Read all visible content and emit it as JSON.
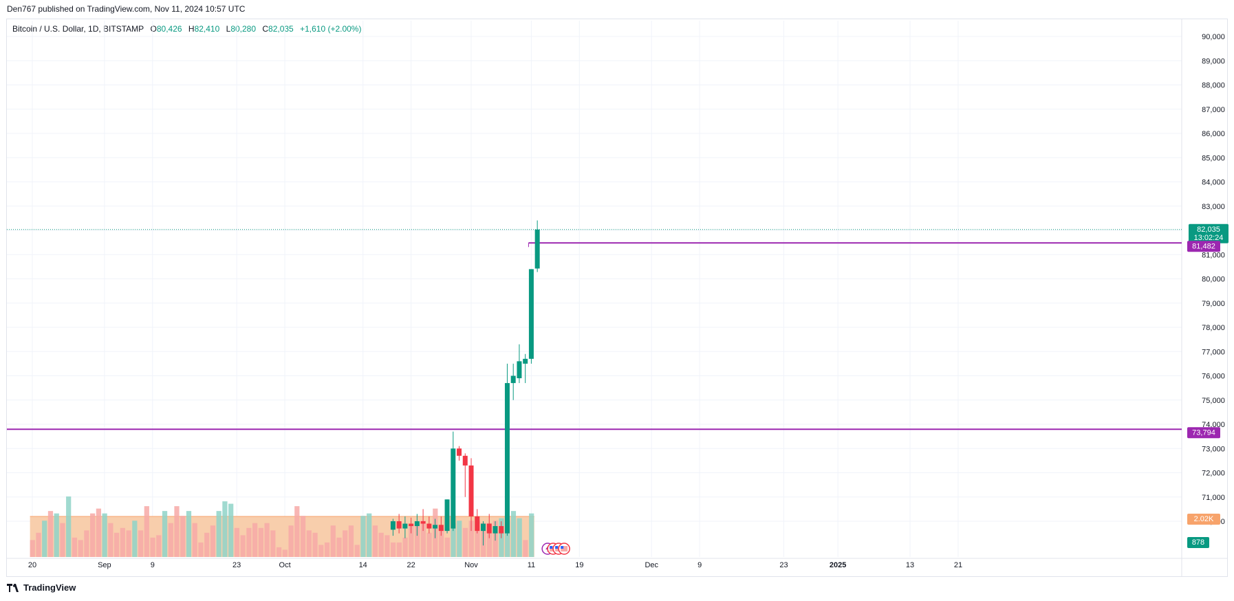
{
  "publisher_line": "Den767 published on TradingView.com, Nov 11, 2024 10:57 UTC",
  "legend": {
    "symbol": "Bitcoin / U.S. Dollar, 1D, BITSTAMP",
    "open_label": "O",
    "open": "80,426",
    "high_label": "H",
    "high": "82,410",
    "low_label": "L",
    "low": "80,280",
    "close_label": "C",
    "close": "82,035",
    "change": "+1,610 (+2.00%)"
  },
  "footer": {
    "brand": "TradingView",
    "icon": "tradingview-logo-icon"
  },
  "colors": {
    "up": "#089981",
    "down": "#f23645",
    "level": "#9c27b0",
    "vol_up": "#8fd3c8",
    "vol_down": "#f7a9a7",
    "vol_ma_fill": "#f7c9a3",
    "vol_ma_line": "#f7a36b"
  },
  "chart_data": {
    "type": "candlestick",
    "ylim": [
      69500,
      90500
    ],
    "y_ticks": [
      70000,
      71000,
      72000,
      73000,
      74000,
      75000,
      76000,
      77000,
      78000,
      79000,
      80000,
      81000,
      82000,
      83000,
      84000,
      85000,
      86000,
      87000,
      88000,
      89000,
      90000
    ],
    "x_ticks": [
      {
        "label": "20",
        "day": 0
      },
      {
        "label": "Sep",
        "day": 12
      },
      {
        "label": "9",
        "day": 20
      },
      {
        "label": "23",
        "day": 34
      },
      {
        "label": "Oct",
        "day": 42
      },
      {
        "label": "14",
        "day": 55
      },
      {
        "label": "22",
        "day": 63
      },
      {
        "label": "Nov",
        "day": 73
      },
      {
        "label": "11",
        "day": 83
      },
      {
        "label": "19",
        "day": 91
      },
      {
        "label": "Dec",
        "day": 103
      },
      {
        "label": "9",
        "day": 111
      },
      {
        "label": "23",
        "day": 125
      },
      {
        "label": "2025",
        "day": 134
      },
      {
        "label": "13",
        "day": 146
      },
      {
        "label": "21",
        "day": 154
      }
    ],
    "candles": [
      {
        "day": 60,
        "o": 69650,
        "h": 70100,
        "l": 69400,
        "c": 70000
      },
      {
        "day": 61,
        "o": 70000,
        "h": 70300,
        "l": 69500,
        "c": 69700
      },
      {
        "day": 62,
        "o": 69700,
        "h": 70200,
        "l": 69300,
        "c": 69900
      },
      {
        "day": 63,
        "o": 69900,
        "h": 70150,
        "l": 69500,
        "c": 69800
      },
      {
        "day": 64,
        "o": 69800,
        "h": 70300,
        "l": 69400,
        "c": 70000
      },
      {
        "day": 65,
        "o": 70000,
        "h": 70500,
        "l": 69600,
        "c": 69900
      },
      {
        "day": 66,
        "o": 69900,
        "h": 70200,
        "l": 69500,
        "c": 69700
      },
      {
        "day": 67,
        "o": 69700,
        "h": 70100,
        "l": 69300,
        "c": 69850
      },
      {
        "day": 68,
        "o": 69850,
        "h": 70200,
        "l": 69400,
        "c": 69600
      },
      {
        "day": 69,
        "o": 69600,
        "h": 70900,
        "l": 69500,
        "c": 70900
      },
      {
        "day": 70,
        "o": 69700,
        "h": 73700,
        "l": 69600,
        "c": 73000
      },
      {
        "day": 71,
        "o": 73000,
        "h": 73100,
        "l": 72500,
        "c": 72700
      },
      {
        "day": 72,
        "o": 72700,
        "h": 72800,
        "l": 71000,
        "c": 72300
      },
      {
        "day": 73,
        "o": 72300,
        "h": 72600,
        "l": 69600,
        "c": 70200
      },
      {
        "day": 74,
        "o": 70200,
        "h": 70500,
        "l": 69500,
        "c": 69600
      },
      {
        "day": 75,
        "o": 69600,
        "h": 70000,
        "l": 69000,
        "c": 69900
      },
      {
        "day": 76,
        "o": 69900,
        "h": 70300,
        "l": 69300,
        "c": 69500
      },
      {
        "day": 77,
        "o": 69500,
        "h": 70000,
        "l": 69200,
        "c": 69800
      },
      {
        "day": 78,
        "o": 69800,
        "h": 70000,
        "l": 69300,
        "c": 69500
      },
      {
        "day": 79,
        "o": 69500,
        "h": 76500,
        "l": 69400,
        "c": 75700
      },
      {
        "day": 80,
        "o": 75700,
        "h": 76500,
        "l": 75000,
        "c": 76000
      },
      {
        "day": 81,
        "o": 75900,
        "h": 77300,
        "l": 75700,
        "c": 76600
      },
      {
        "day": 82,
        "o": 76500,
        "h": 76900,
        "l": 75700,
        "c": 76700
      },
      {
        "day": 83,
        "o": 76700,
        "h": 80400,
        "l": 76500,
        "c": 80400
      },
      {
        "day": 84,
        "o": 80426,
        "h": 82410,
        "l": 80280,
        "c": 82035
      }
    ],
    "volume": {
      "ma_level": 70200,
      "bars": [
        {
          "day": 0,
          "v": 0.35,
          "up": false
        },
        {
          "day": 1,
          "v": 0.5,
          "up": false
        },
        {
          "day": 2,
          "v": 0.75,
          "up": true
        },
        {
          "day": 3,
          "v": 0.95,
          "up": false
        },
        {
          "day": 4,
          "v": 0.9,
          "up": true
        },
        {
          "day": 5,
          "v": 0.7,
          "up": false
        },
        {
          "day": 6,
          "v": 1.25,
          "up": true
        },
        {
          "day": 7,
          "v": 0.4,
          "up": false
        },
        {
          "day": 8,
          "v": 0.35,
          "up": false
        },
        {
          "day": 9,
          "v": 0.55,
          "up": false
        },
        {
          "day": 10,
          "v": 0.9,
          "up": false
        },
        {
          "day": 11,
          "v": 1.0,
          "up": false
        },
        {
          "day": 12,
          "v": 0.9,
          "up": true
        },
        {
          "day": 13,
          "v": 0.7,
          "up": false
        },
        {
          "day": 14,
          "v": 0.5,
          "up": false
        },
        {
          "day": 15,
          "v": 0.6,
          "up": false
        },
        {
          "day": 16,
          "v": 0.55,
          "up": false
        },
        {
          "day": 17,
          "v": 0.75,
          "up": true
        },
        {
          "day": 18,
          "v": 0.55,
          "up": false
        },
        {
          "day": 19,
          "v": 1.05,
          "up": false
        },
        {
          "day": 20,
          "v": 0.4,
          "up": false
        },
        {
          "day": 21,
          "v": 0.45,
          "up": false
        },
        {
          "day": 22,
          "v": 0.95,
          "up": true
        },
        {
          "day": 23,
          "v": 0.7,
          "up": false
        },
        {
          "day": 24,
          "v": 1.05,
          "up": false
        },
        {
          "day": 25,
          "v": 0.85,
          "up": false
        },
        {
          "day": 26,
          "v": 0.95,
          "up": true
        },
        {
          "day": 27,
          "v": 0.7,
          "up": false
        },
        {
          "day": 28,
          "v": 0.3,
          "up": false
        },
        {
          "day": 29,
          "v": 0.5,
          "up": false
        },
        {
          "day": 30,
          "v": 0.65,
          "up": false
        },
        {
          "day": 31,
          "v": 0.95,
          "up": true
        },
        {
          "day": 32,
          "v": 1.15,
          "up": true
        },
        {
          "day": 33,
          "v": 1.1,
          "up": true
        },
        {
          "day": 34,
          "v": 0.6,
          "up": false
        },
        {
          "day": 35,
          "v": 0.45,
          "up": false
        },
        {
          "day": 36,
          "v": 0.6,
          "up": false
        },
        {
          "day": 37,
          "v": 0.7,
          "up": false
        },
        {
          "day": 38,
          "v": 0.6,
          "up": false
        },
        {
          "day": 39,
          "v": 0.7,
          "up": false
        },
        {
          "day": 40,
          "v": 0.55,
          "up": false
        },
        {
          "day": 41,
          "v": 0.2,
          "up": false
        },
        {
          "day": 42,
          "v": 0.15,
          "up": false
        },
        {
          "day": 43,
          "v": 0.65,
          "up": false
        },
        {
          "day": 44,
          "v": 1.05,
          "up": false
        },
        {
          "day": 45,
          "v": 0.85,
          "up": false
        },
        {
          "day": 46,
          "v": 0.55,
          "up": false
        },
        {
          "day": 47,
          "v": 0.5,
          "up": false
        },
        {
          "day": 48,
          "v": 0.25,
          "up": false
        },
        {
          "day": 49,
          "v": 0.3,
          "up": false
        },
        {
          "day": 50,
          "v": 0.65,
          "up": false
        },
        {
          "day": 51,
          "v": 0.4,
          "up": false
        },
        {
          "day": 52,
          "v": 0.55,
          "up": false
        },
        {
          "day": 53,
          "v": 0.65,
          "up": false
        },
        {
          "day": 54,
          "v": 0.25,
          "up": false
        },
        {
          "day": 55,
          "v": 0.85,
          "up": true
        },
        {
          "day": 56,
          "v": 0.9,
          "up": true
        },
        {
          "day": 57,
          "v": 0.65,
          "up": false
        },
        {
          "day": 58,
          "v": 0.5,
          "up": false
        },
        {
          "day": 59,
          "v": 0.45,
          "up": false
        },
        {
          "day": 60,
          "v": 0.3,
          "up": false
        },
        {
          "day": 61,
          "v": 0.3,
          "up": false
        },
        {
          "day": 62,
          "v": 0.4,
          "up": false
        },
        {
          "day": 63,
          "v": 0.65,
          "up": false
        },
        {
          "day": 64,
          "v": 0.7,
          "up": false
        },
        {
          "day": 65,
          "v": 0.75,
          "up": false
        },
        {
          "day": 66,
          "v": 0.5,
          "up": false
        },
        {
          "day": 67,
          "v": 1.0,
          "up": false
        },
        {
          "day": 68,
          "v": 0.6,
          "up": false
        },
        {
          "day": 69,
          "v": 0.4,
          "up": false
        },
        {
          "day": 70,
          "v": 0.7,
          "up": true
        },
        {
          "day": 71,
          "v": 0.75,
          "up": true
        },
        {
          "day": 72,
          "v": 0.6,
          "up": false
        },
        {
          "day": 73,
          "v": 0.75,
          "up": false
        },
        {
          "day": 74,
          "v": 0.75,
          "up": false
        },
        {
          "day": 75,
          "v": 0.7,
          "up": false
        },
        {
          "day": 76,
          "v": 0.7,
          "up": false
        },
        {
          "day": 77,
          "v": 0.75,
          "up": false
        },
        {
          "day": 78,
          "v": 0.8,
          "up": true
        },
        {
          "day": 79,
          "v": 0.75,
          "up": true
        },
        {
          "day": 80,
          "v": 0.95,
          "up": true
        },
        {
          "day": 81,
          "v": 0.8,
          "up": true
        },
        {
          "day": 82,
          "v": 0.35,
          "up": false
        },
        {
          "day": 83,
          "v": 0.9,
          "up": true
        }
      ]
    },
    "levels": [
      {
        "name": "resistance",
        "value": 81482,
        "label": "81,482",
        "from_day": 83
      },
      {
        "name": "support",
        "value": 73794,
        "label": "73,794",
        "from_day": null
      }
    ],
    "last_price": {
      "value": 82035,
      "label": "82,035",
      "countdown": "13:02:24"
    },
    "volume_labels": {
      "ma": "2.02K",
      "last": "878"
    },
    "event_icons": [
      "lightning-event-icon",
      "us-flag-event-icon",
      "us-flag-event-icon",
      "us-flag-event-icon"
    ]
  }
}
